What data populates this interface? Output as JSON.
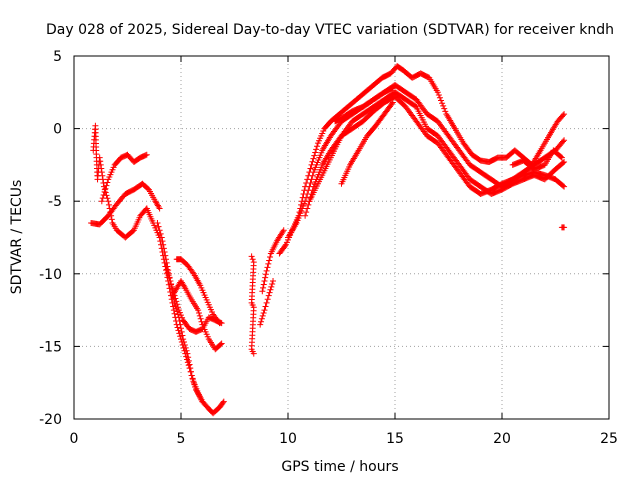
{
  "chart_data": {
    "type": "scatter",
    "title": "Day 028 of 2025, Sidereal Day-to-day VTEC variation (SDTVAR) for receiver kndh",
    "xlabel": "GPS time / hours",
    "ylabel": "SDTVAR / TECUs",
    "xlim": [
      0,
      25
    ],
    "ylim": [
      -20,
      5
    ],
    "xticks": [
      0,
      5,
      10,
      15,
      20,
      25
    ],
    "yticks": [
      -20,
      -15,
      -10,
      -5,
      0,
      5
    ],
    "xtick_labels": [
      "0",
      "5",
      "10",
      "15",
      "20",
      "25"
    ],
    "ytick_labels": [
      "-20",
      "-15",
      "-10",
      "-5",
      "0",
      "5"
    ],
    "grid": true,
    "marker": "+",
    "series": [
      {
        "name": "track-1",
        "color": "#ff0000",
        "points": [
          [
            0.9,
            -1.5
          ],
          [
            1.0,
            0.2
          ],
          [
            1.05,
            -2.0
          ],
          [
            1.1,
            -3.5
          ],
          [
            1.2,
            -2.0
          ],
          [
            1.4,
            -4.0
          ],
          [
            1.6,
            -5.0
          ],
          [
            1.8,
            -6.5
          ],
          [
            2.0,
            -7.0
          ],
          [
            2.4,
            -7.5
          ],
          [
            2.8,
            -7.0
          ],
          [
            3.1,
            -6.0
          ],
          [
            3.4,
            -5.5
          ]
        ]
      },
      {
        "name": "track-2",
        "color": "#ff0000",
        "points": [
          [
            0.8,
            -6.5
          ],
          [
            1.2,
            -6.6
          ],
          [
            1.6,
            -6.0
          ],
          [
            2.0,
            -5.2
          ],
          [
            2.4,
            -4.5
          ],
          [
            2.8,
            -4.2
          ],
          [
            3.2,
            -3.8
          ],
          [
            3.5,
            -4.2
          ],
          [
            3.8,
            -5.0
          ],
          [
            4.0,
            -5.5
          ]
        ]
      },
      {
        "name": "track-3",
        "color": "#ff0000",
        "points": [
          [
            1.3,
            -5.0
          ],
          [
            1.6,
            -3.5
          ],
          [
            1.9,
            -2.5
          ],
          [
            2.2,
            -2.0
          ],
          [
            2.5,
            -1.8
          ],
          [
            2.8,
            -2.3
          ],
          [
            3.1,
            -2.0
          ],
          [
            3.4,
            -1.8
          ]
        ]
      },
      {
        "name": "track-4",
        "color": "#ff0000",
        "points": [
          [
            3.4,
            -5.5
          ],
          [
            3.7,
            -6.5
          ],
          [
            4.0,
            -7.5
          ],
          [
            4.2,
            -9.0
          ],
          [
            4.4,
            -10.5
          ],
          [
            4.6,
            -12.0
          ],
          [
            4.8,
            -13.5
          ],
          [
            5.0,
            -14.5
          ],
          [
            5.2,
            -15.5
          ],
          [
            5.4,
            -16.5
          ],
          [
            5.6,
            -17.5
          ],
          [
            5.8,
            -18.2
          ],
          [
            6.0,
            -18.8
          ],
          [
            6.3,
            -19.3
          ],
          [
            6.5,
            -19.6
          ],
          [
            6.8,
            -19.2
          ],
          [
            7.0,
            -18.8
          ]
        ]
      },
      {
        "name": "track-5",
        "color": "#ff0000",
        "points": [
          [
            3.9,
            -6.5
          ],
          [
            4.1,
            -7.5
          ],
          [
            4.3,
            -9.0
          ],
          [
            4.5,
            -10.5
          ],
          [
            4.7,
            -12.0
          ],
          [
            4.9,
            -13.0
          ],
          [
            5.1,
            -14.5
          ],
          [
            5.3,
            -15.5
          ],
          [
            5.5,
            -17.0
          ],
          [
            5.7,
            -18.0
          ],
          [
            6.0,
            -18.8
          ]
        ]
      },
      {
        "name": "track-6",
        "color": "#ff0000",
        "points": [
          [
            4.3,
            -9.5
          ],
          [
            4.5,
            -10.5
          ],
          [
            4.7,
            -11.5
          ],
          [
            4.9,
            -12.5
          ],
          [
            5.1,
            -13.2
          ],
          [
            5.4,
            -13.8
          ],
          [
            5.7,
            -14.0
          ],
          [
            6.0,
            -13.8
          ],
          [
            6.3,
            -13.0
          ],
          [
            6.6,
            -13.2
          ],
          [
            6.9,
            -13.4
          ]
        ]
      },
      {
        "name": "track-7",
        "color": "#ff0000",
        "points": [
          [
            4.6,
            -11.5
          ],
          [
            4.8,
            -11.0
          ],
          [
            5.0,
            -10.5
          ],
          [
            5.2,
            -11.0
          ],
          [
            5.5,
            -11.8
          ],
          [
            5.8,
            -12.5
          ],
          [
            6.0,
            -13.5
          ],
          [
            6.3,
            -14.5
          ],
          [
            6.6,
            -15.2
          ],
          [
            6.9,
            -14.8
          ]
        ]
      },
      {
        "name": "track-8",
        "color": "#ff0000",
        "points": [
          [
            4.8,
            -9.0
          ],
          [
            5.0,
            -9.0
          ],
          [
            5.3,
            -9.4
          ],
          [
            5.6,
            -10.0
          ],
          [
            5.9,
            -10.8
          ],
          [
            6.2,
            -11.8
          ],
          [
            6.5,
            -12.8
          ],
          [
            6.8,
            -13.4
          ]
        ]
      },
      {
        "name": "track-9",
        "color": "#ff0000",
        "points": [
          [
            8.3,
            -8.8
          ],
          [
            8.4,
            -9.2
          ],
          [
            8.3,
            -12.0
          ],
          [
            8.4,
            -12.3
          ],
          [
            8.3,
            -15.2
          ],
          [
            8.4,
            -15.5
          ]
        ]
      },
      {
        "name": "track-10",
        "color": "#ff0000",
        "points": [
          [
            8.8,
            -11.2
          ],
          [
            9.0,
            -9.8
          ],
          [
            9.2,
            -8.6
          ],
          [
            9.5,
            -7.7
          ],
          [
            9.8,
            -7.0
          ]
        ]
      },
      {
        "name": "track-11",
        "color": "#ff0000",
        "points": [
          [
            8.7,
            -13.5
          ],
          [
            8.9,
            -12.5
          ],
          [
            9.1,
            -11.5
          ],
          [
            9.3,
            -10.5
          ]
        ]
      },
      {
        "name": "track-12",
        "color": "#ff0000",
        "points": [
          [
            9.6,
            -8.6
          ],
          [
            9.9,
            -8.0
          ],
          [
            10.2,
            -7.0
          ],
          [
            10.5,
            -6.0
          ],
          [
            10.8,
            -4.0
          ],
          [
            11.1,
            -2.5
          ],
          [
            11.4,
            -1.0
          ],
          [
            11.7,
            0.0
          ],
          [
            12.0,
            0.5
          ],
          [
            12.4,
            1.0
          ],
          [
            12.8,
            1.5
          ],
          [
            13.2,
            2.0
          ],
          [
            13.6,
            2.5
          ],
          [
            14.0,
            3.0
          ],
          [
            14.4,
            3.5
          ],
          [
            14.8,
            3.8
          ],
          [
            15.1,
            4.3
          ],
          [
            15.4,
            4.0
          ],
          [
            15.8,
            3.5
          ],
          [
            16.2,
            3.8
          ],
          [
            16.6,
            3.5
          ],
          [
            17.0,
            2.5
          ],
          [
            17.4,
            1.0
          ],
          [
            17.8,
            0.0
          ],
          [
            18.2,
            -1.0
          ],
          [
            18.6,
            -1.8
          ],
          [
            19.0,
            -2.2
          ],
          [
            19.4,
            -2.3
          ],
          [
            19.8,
            -2.0
          ],
          [
            20.2,
            -2.0
          ],
          [
            20.6,
            -1.5
          ],
          [
            21.0,
            -2.0
          ],
          [
            21.4,
            -2.5
          ],
          [
            21.8,
            -1.5
          ],
          [
            22.2,
            -0.5
          ],
          [
            22.6,
            0.5
          ],
          [
            22.9,
            1.0
          ]
        ]
      },
      {
        "name": "track-13",
        "color": "#ff0000",
        "points": [
          [
            10.0,
            -7.5
          ],
          [
            10.4,
            -6.5
          ],
          [
            10.8,
            -5.0
          ],
          [
            11.2,
            -3.0
          ],
          [
            11.6,
            -1.5
          ],
          [
            12.0,
            -0.5
          ],
          [
            12.5,
            0.5
          ],
          [
            13.0,
            1.0
          ],
          [
            13.5,
            1.5
          ],
          [
            14.0,
            2.0
          ],
          [
            14.5,
            2.5
          ],
          [
            15.0,
            3.0
          ],
          [
            15.5,
            2.5
          ],
          [
            16.0,
            2.0
          ],
          [
            16.5,
            1.0
          ],
          [
            17.0,
            0.5
          ],
          [
            17.5,
            -0.5
          ],
          [
            18.0,
            -1.5
          ],
          [
            18.5,
            -2.5
          ],
          [
            19.0,
            -3.0
          ],
          [
            19.5,
            -3.5
          ],
          [
            20.0,
            -4.0
          ],
          [
            20.5,
            -3.5
          ],
          [
            21.0,
            -3.0
          ],
          [
            21.5,
            -2.5
          ],
          [
            22.0,
            -2.0
          ],
          [
            22.5,
            -1.5
          ],
          [
            22.9,
            -0.8
          ]
        ]
      },
      {
        "name": "track-14",
        "color": "#ff0000",
        "points": [
          [
            10.8,
            -6.0
          ],
          [
            11.2,
            -4.0
          ],
          [
            11.6,
            -2.5
          ],
          [
            12.0,
            -1.5
          ],
          [
            12.5,
            -0.5
          ],
          [
            13.0,
            0.5
          ],
          [
            13.5,
            1.0
          ],
          [
            14.0,
            1.5
          ],
          [
            14.5,
            2.0
          ],
          [
            15.0,
            2.5
          ],
          [
            15.5,
            2.0
          ],
          [
            16.0,
            1.5
          ],
          [
            16.5,
            0.0
          ],
          [
            17.0,
            -0.5
          ],
          [
            17.5,
            -1.5
          ],
          [
            18.0,
            -2.5
          ],
          [
            18.5,
            -3.5
          ],
          [
            19.0,
            -4.0
          ],
          [
            19.5,
            -4.5
          ],
          [
            20.0,
            -4.2
          ],
          [
            20.5,
            -3.8
          ],
          [
            21.0,
            -3.5
          ],
          [
            21.5,
            -3.2
          ],
          [
            22.0,
            -3.5
          ],
          [
            22.5,
            -2.8
          ],
          [
            22.9,
            -2.3
          ]
        ]
      },
      {
        "name": "track-15",
        "color": "#ff0000",
        "points": [
          [
            11.0,
            -5.0
          ],
          [
            11.5,
            -3.5
          ],
          [
            12.0,
            -2.0
          ],
          [
            12.5,
            -0.5
          ],
          [
            13.0,
            0.0
          ],
          [
            13.5,
            0.5
          ],
          [
            14.0,
            1.2
          ],
          [
            14.5,
            1.8
          ],
          [
            15.0,
            2.2
          ],
          [
            15.5,
            1.5
          ],
          [
            16.0,
            0.5
          ],
          [
            16.5,
            -0.5
          ],
          [
            17.0,
            -1.0
          ],
          [
            17.5,
            -2.0
          ],
          [
            18.0,
            -3.0
          ],
          [
            18.5,
            -4.0
          ],
          [
            19.0,
            -4.5
          ],
          [
            19.5,
            -4.2
          ],
          [
            20.0,
            -3.8
          ],
          [
            20.5,
            -3.5
          ],
          [
            21.0,
            -3.2
          ],
          [
            21.5,
            -3.0
          ],
          [
            22.0,
            -3.2
          ],
          [
            22.5,
            -3.5
          ],
          [
            22.9,
            -4.0
          ]
        ]
      },
      {
        "name": "track-16",
        "color": "#ff0000",
        "points": [
          [
            12.2,
            0.5
          ],
          [
            12.6,
            0.8
          ],
          [
            13.0,
            1.2
          ],
          [
            13.5,
            1.5
          ],
          [
            14.0,
            2.0
          ],
          [
            14.5,
            2.5
          ],
          [
            14.9,
            2.8
          ]
        ]
      },
      {
        "name": "track-17",
        "color": "#ff0000",
        "points": [
          [
            12.5,
            -3.8
          ],
          [
            12.9,
            -2.5
          ],
          [
            13.3,
            -1.5
          ],
          [
            13.7,
            -0.5
          ],
          [
            14.1,
            0.2
          ],
          [
            14.5,
            1.0
          ],
          [
            14.9,
            1.8
          ]
        ]
      },
      {
        "name": "track-18",
        "color": "#ff0000",
        "points": [
          [
            20.5,
            -2.5
          ],
          [
            21.0,
            -2.2
          ],
          [
            21.5,
            -2.8
          ],
          [
            22.0,
            -2.5
          ],
          [
            22.4,
            -1.5
          ],
          [
            22.8,
            -2.0
          ]
        ]
      },
      {
        "name": "track-19",
        "color": "#ff0000",
        "points": [
          [
            22.8,
            -6.8
          ],
          [
            22.9,
            -6.8
          ]
        ]
      }
    ]
  }
}
